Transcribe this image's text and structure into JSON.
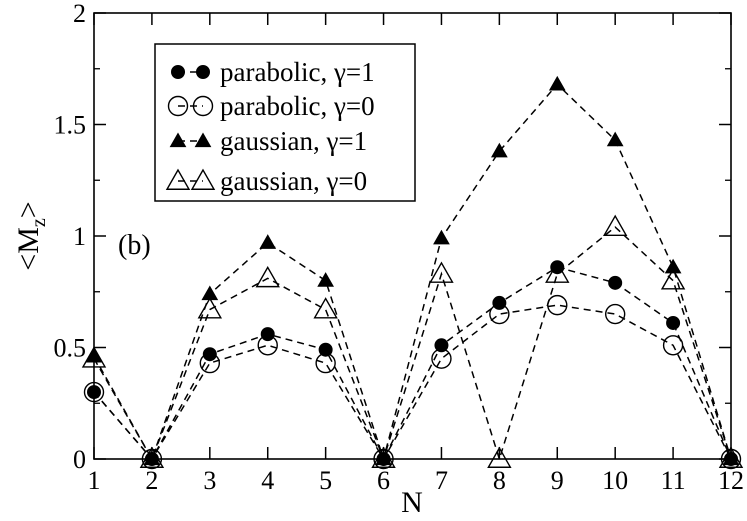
{
  "chart_data": {
    "type": "line",
    "title": "",
    "xlabel": "N",
    "ylabel_main": "<M",
    "ylabel_sub": "z",
    "ylabel_end": ">",
    "annotation": "(b)",
    "xlim": [
      1,
      12
    ],
    "ylim": [
      0,
      2
    ],
    "x_ticks": [
      1,
      2,
      3,
      4,
      5,
      6,
      7,
      8,
      9,
      10,
      11,
      12
    ],
    "y_ticks": [
      0,
      0.5,
      1,
      1.5,
      2
    ],
    "y_tick_labels": [
      "0",
      "0.5",
      "1",
      "1.5",
      "2"
    ],
    "grid": false,
    "legend_position": "top-left",
    "x": [
      1,
      2,
      3,
      4,
      5,
      6,
      7,
      8,
      9,
      10,
      11,
      12
    ],
    "series": [
      {
        "name": "parabolic, γ=1",
        "marker": "filled-circle",
        "values": [
          0.3,
          0.0,
          0.47,
          0.56,
          0.49,
          0.0,
          0.51,
          0.7,
          0.86,
          0.79,
          0.61,
          0.0
        ]
      },
      {
        "name": "parabolic, γ=0",
        "marker": "open-circle",
        "values": [
          0.3,
          0.0,
          0.43,
          0.51,
          0.43,
          0.0,
          0.45,
          0.65,
          0.69,
          0.65,
          0.51,
          0.0
        ]
      },
      {
        "name": "gaussian, γ=1",
        "marker": "filled-triangle",
        "values": [
          0.46,
          0.0,
          0.74,
          0.97,
          0.8,
          0.0,
          0.99,
          1.38,
          1.68,
          1.43,
          0.86,
          0.0
        ]
      },
      {
        "name": "gaussian, γ=0",
        "marker": "open-triangle",
        "values": [
          0.45,
          0.0,
          0.67,
          0.81,
          0.67,
          0.0,
          0.83,
          0.0,
          0.83,
          1.04,
          0.8,
          0.0
        ]
      }
    ]
  }
}
